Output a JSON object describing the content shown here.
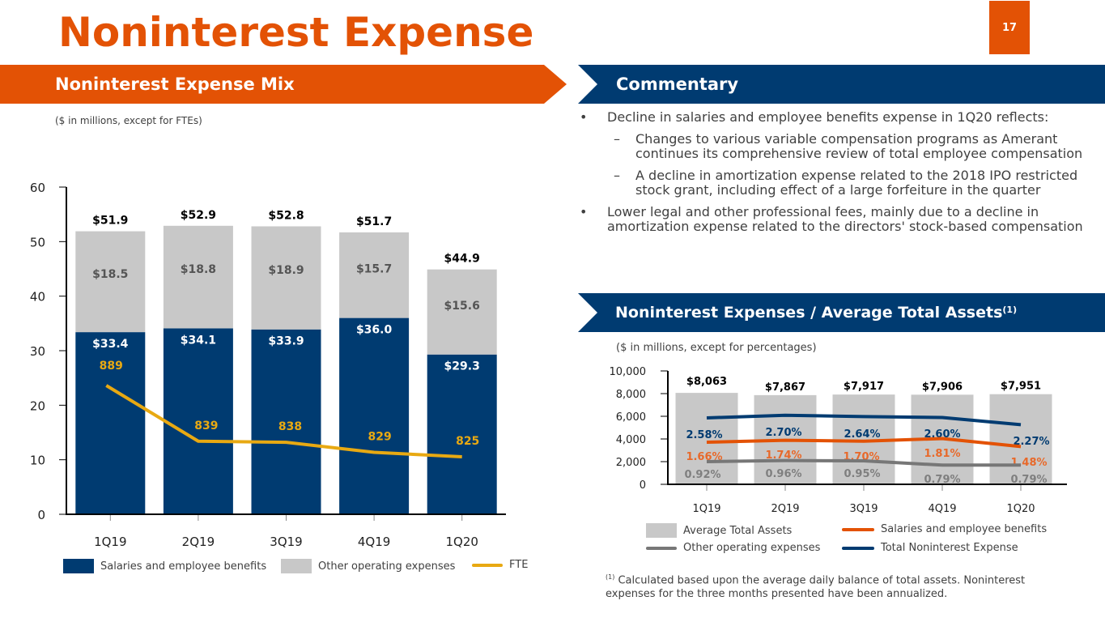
{
  "page": {
    "title": "Noninterest Expense",
    "page_number": "17"
  },
  "left_panel": {
    "banner": "Noninterest Expense Mix",
    "units_note": "($ in millions, except for FTEs)"
  },
  "commentary": {
    "banner": "Commentary",
    "bullets": [
      {
        "text": "Decline in salaries and employee benefits expense in 1Q20 reflects:",
        "sub": [
          "Changes to various variable compensation programs as Amerant continues its comprehensive review of total employee compensation",
          "A decline in amortization expense related to the 2018 IPO restricted stock grant, including effect of a large forfeiture in the quarter"
        ]
      },
      {
        "text": "Lower legal and other professional fees, mainly due to a decline in amortization expense related to the directors' stock-based compensation",
        "sub": []
      }
    ]
  },
  "right_panel": {
    "banner": "Noninterest Expenses / Average Total Assets",
    "banner_sup": "(1)",
    "units_note": "($ in millions, except for percentages)",
    "footnote_sup": "(1)",
    "footnote": "Calculated based upon the average daily balance of total assets. Noninterest expenses for the three months presented have been annualized."
  },
  "colors": {
    "orange": "#E35205",
    "navy": "#003B71",
    "gray_bar": "#C8C8C8",
    "fte": "#E8A912",
    "other_line": "#777777",
    "salaries_line": "#E35205",
    "total_line": "#003B71"
  },
  "chart_data": [
    {
      "type": "bar",
      "stacked": true,
      "title": "Noninterest Expense Mix",
      "categories": [
        "1Q19",
        "2Q19",
        "3Q19",
        "4Q19",
        "1Q20"
      ],
      "series": [
        {
          "name": "Salaries and employee benefits",
          "values": [
            33.4,
            34.1,
            33.9,
            36.0,
            29.3
          ],
          "labels": [
            "$33.4",
            "$34.1",
            "$33.9",
            "$36.0",
            "$29.3"
          ]
        },
        {
          "name": "Other operating expenses",
          "values": [
            18.5,
            18.8,
            18.9,
            15.7,
            15.6
          ],
          "labels": [
            "$18.5",
            "$18.8",
            "$18.9",
            "$15.7",
            "$15.6"
          ]
        }
      ],
      "totals": [
        51.9,
        52.9,
        52.8,
        51.7,
        44.9
      ],
      "total_labels": [
        "$51.9",
        "$52.9",
        "$52.8",
        "$51.7",
        "$44.9"
      ],
      "line_series": {
        "name": "FTE",
        "values": [
          889,
          839,
          838,
          829,
          825
        ],
        "labels": [
          "889",
          "839",
          "838",
          "829",
          "825"
        ]
      },
      "ylim": [
        0,
        60
      ],
      "yticks": [
        0,
        10,
        20,
        30,
        40,
        50,
        60
      ],
      "ytick_labels": [
        "0",
        "10",
        "20",
        "30",
        "40",
        "50",
        "60"
      ],
      "legend": [
        "Salaries and employee benefits",
        "Other operating expenses",
        "FTE"
      ],
      "legend_position": "bottom"
    },
    {
      "type": "bar",
      "title": "Noninterest Expenses / Average Total Assets",
      "categories": [
        "1Q19",
        "2Q19",
        "3Q19",
        "4Q19",
        "1Q20"
      ],
      "bars": {
        "name": "Average Total Assets",
        "values": [
          8063,
          7867,
          7917,
          7906,
          7951
        ],
        "labels": [
          "$8,063",
          "$7,867",
          "$7,917",
          "$7,906",
          "$7,951"
        ]
      },
      "lines": [
        {
          "name": "Total Noninterest Expense",
          "values": [
            2.58,
            2.7,
            2.64,
            2.6,
            2.27
          ],
          "labels": [
            "2.58%",
            "2.70%",
            "2.64%",
            "2.60%",
            "2.27%"
          ]
        },
        {
          "name": "Salaries and employee benefits",
          "values": [
            1.66,
            1.74,
            1.7,
            1.81,
            1.48
          ],
          "labels": [
            "1.66%",
            "1.74%",
            "1.70%",
            "1.81%",
            "1.48%"
          ]
        },
        {
          "name": "Other operating expenses",
          "values": [
            0.92,
            0.96,
            0.95,
            0.79,
            0.79
          ],
          "labels": [
            "0.92%",
            "0.96%",
            "0.95%",
            "0.79%",
            "0.79%"
          ]
        }
      ],
      "ylim": [
        0,
        10000
      ],
      "yticks": [
        0,
        2000,
        4000,
        6000,
        8000,
        10000
      ],
      "ytick_labels": [
        "0",
        "2,000",
        "4,000",
        "6,000",
        "8,000",
        "10,000"
      ],
      "legend": [
        "Average Total Assets",
        "Salaries and employee benefits",
        "Other operating expenses",
        "Total Noninterest Expense"
      ],
      "legend_position": "bottom"
    }
  ]
}
